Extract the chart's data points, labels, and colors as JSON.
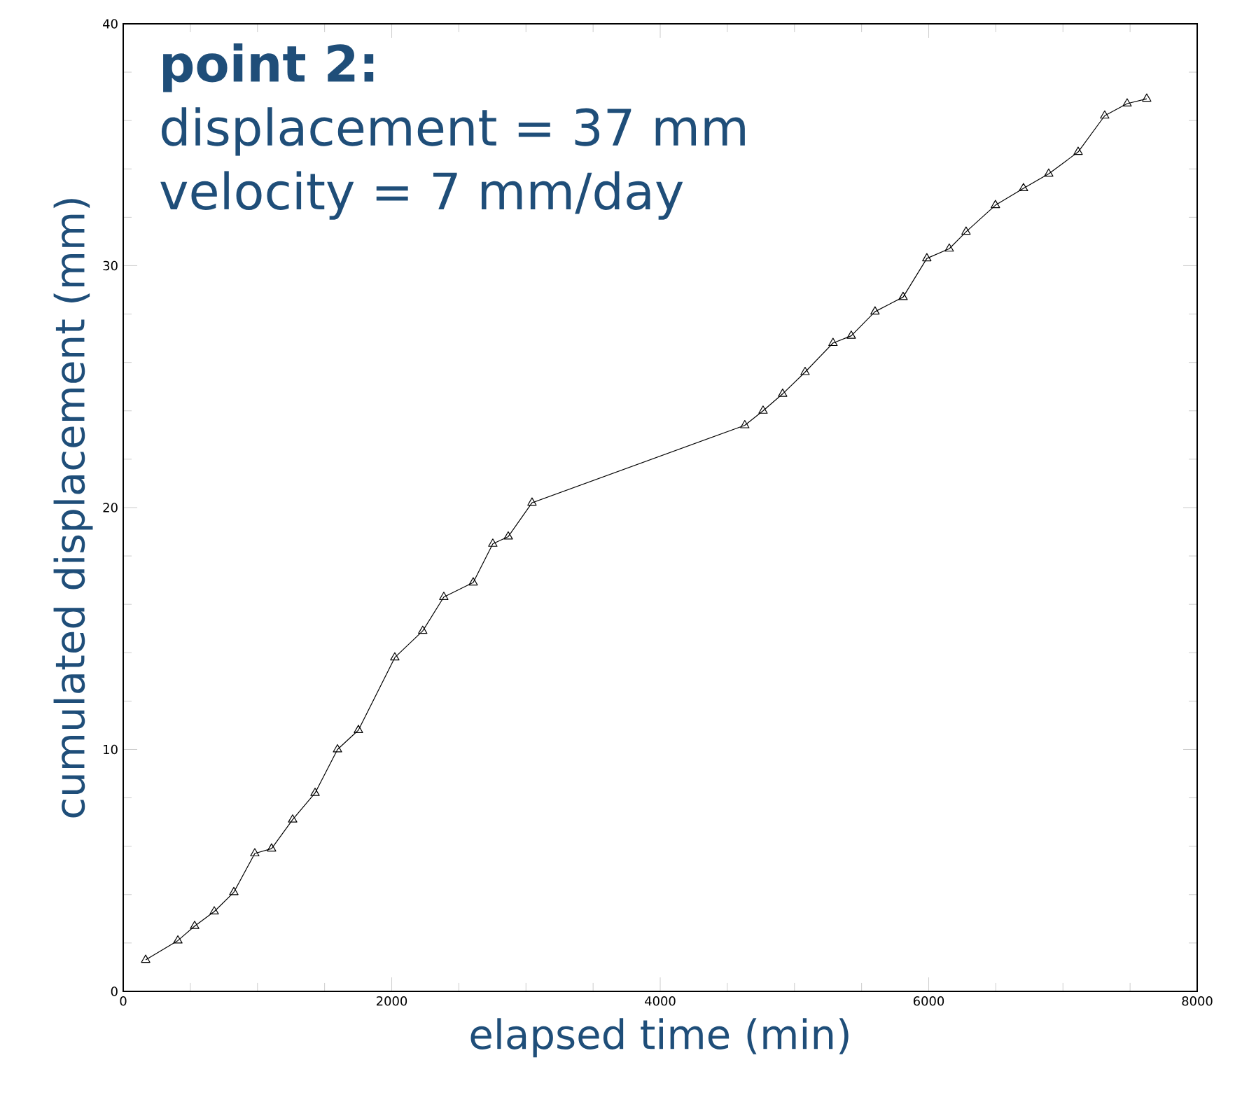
{
  "chart_data": {
    "type": "line",
    "xlabel": "elapsed time (min)",
    "ylabel": "cumulated displacement (mm)",
    "annotations": [
      "point 2:",
      "displacement = 37 mm",
      "velocity = 7 mm/day"
    ],
    "x": [
      167,
      407,
      532,
      678,
      824,
      980,
      1105,
      1262,
      1429,
      1596,
      1752,
      2023,
      2231,
      2388,
      2607,
      2753,
      2868,
      3045,
      4630,
      4766,
      4912,
      5079,
      5287,
      5423,
      5600,
      5809,
      5986,
      6153,
      6278,
      6497,
      6706,
      6894,
      7113,
      7311,
      7478,
      7624
    ],
    "series": [
      {
        "color": "#000000",
        "values": [
          1.3,
          2.1,
          2.7,
          3.3,
          4.1,
          5.7,
          5.9,
          7.1,
          8.2,
          10.0,
          10.8,
          13.8,
          14.9,
          16.3,
          16.9,
          18.5,
          18.8,
          20.2,
          23.4,
          24.0,
          24.7,
          25.6,
          26.8,
          27.1,
          28.1,
          28.7,
          30.3,
          30.7,
          31.4,
          32.5,
          33.2,
          33.8,
          34.7,
          36.2,
          36.7,
          36.9
        ]
      }
    ],
    "xlim": [
      0,
      8000
    ],
    "xticks": [
      0,
      2000,
      4000,
      6000,
      8000
    ],
    "ylim": [
      0,
      40
    ],
    "yticks": [
      0,
      10,
      20,
      30,
      40
    ],
    "marker": "triangle",
    "line_style": "solid"
  }
}
